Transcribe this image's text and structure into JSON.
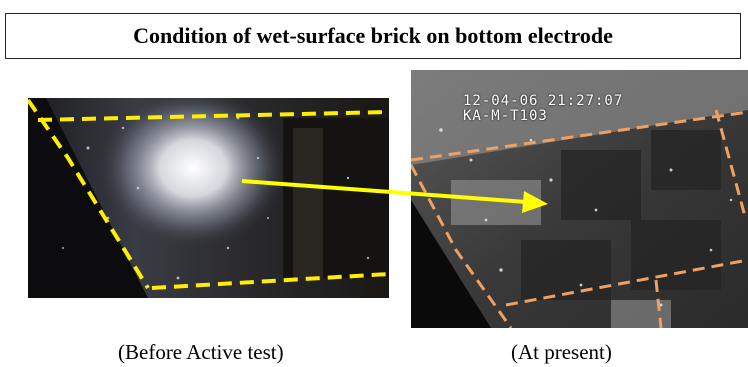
{
  "title": "Condition of wet-surface brick on bottom electrode",
  "photos": {
    "before": {
      "caption": "(Before Active test)"
    },
    "present": {
      "caption": "(At present)",
      "timestamp_line1": "12-04-06 21:27:07",
      "timestamp_line2": "KA-M-T103"
    }
  },
  "colors": {
    "outline_before": "#ffee00",
    "outline_present": "#f0a060",
    "arrow": "#ffff00"
  }
}
